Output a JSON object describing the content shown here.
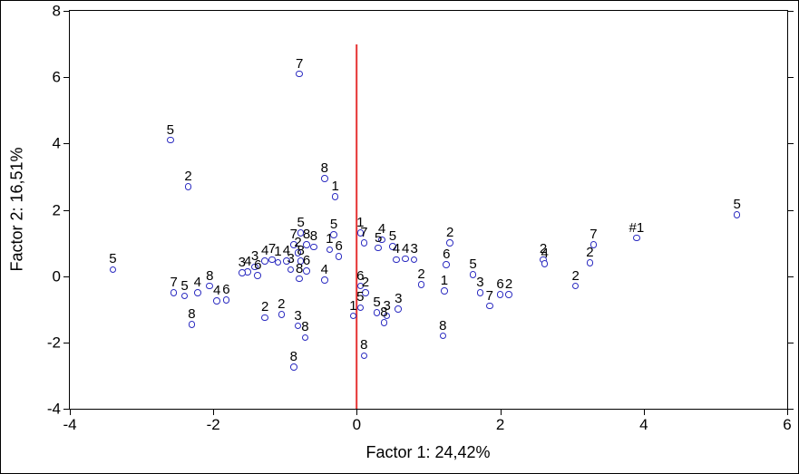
{
  "chart_data": {
    "type": "scatter",
    "title": "",
    "xlabel": "Factor 1: 24,42%",
    "ylabel": "Factor 2: 16,51%",
    "xlim": [
      -4,
      6
    ],
    "ylim": [
      -4,
      8
    ],
    "x_ticks": [
      -4,
      -2,
      0,
      2,
      4,
      6
    ],
    "y_ticks": [
      8,
      6,
      4,
      2,
      0,
      -2,
      -4
    ],
    "grid": false,
    "legend": "none",
    "marker": {
      "shape": "circle",
      "fill": "#ffffff",
      "stroke": "#2a2ac0"
    },
    "reference_line": {
      "axis": "vertical",
      "x": 0,
      "y_from": -4,
      "y_to": 7,
      "color": "#e63232"
    },
    "points": [
      {
        "label": "7",
        "x": -0.8,
        "y": 6.1
      },
      {
        "label": "5",
        "x": -2.6,
        "y": 4.1
      },
      {
        "label": "2",
        "x": -2.35,
        "y": 2.7
      },
      {
        "label": "8",
        "x": -0.45,
        "y": 2.95
      },
      {
        "label": "1",
        "x": -0.3,
        "y": 2.4
      },
      {
        "label": "5",
        "x": 5.3,
        "y": 1.85
      },
      {
        "label": "#1",
        "x": 3.9,
        "y": 1.15
      },
      {
        "label": "7",
        "x": 3.3,
        "y": 0.95
      },
      {
        "label": "2",
        "x": 3.25,
        "y": 0.4
      },
      {
        "label": "2",
        "x": 3.05,
        "y": -0.3
      },
      {
        "label": "2",
        "x": 2.6,
        "y": 0.5
      },
      {
        "label": "4",
        "x": 2.62,
        "y": 0.38
      },
      {
        "label": "2",
        "x": 1.3,
        "y": 1.0
      },
      {
        "label": "6",
        "x": 1.25,
        "y": 0.35
      },
      {
        "label": "1",
        "x": 1.22,
        "y": -0.45
      },
      {
        "label": "8",
        "x": 1.2,
        "y": -1.8
      },
      {
        "label": "5",
        "x": 1.62,
        "y": 0.05
      },
      {
        "label": "3",
        "x": 1.72,
        "y": -0.5
      },
      {
        "label": "7",
        "x": 1.85,
        "y": -0.9
      },
      {
        "label": "6",
        "x": 2.0,
        "y": -0.55
      },
      {
        "label": "2",
        "x": 2.12,
        "y": -0.55
      },
      {
        "label": "1",
        "x": 0.05,
        "y": 1.3
      },
      {
        "label": "7",
        "x": 0.1,
        "y": 1.0
      },
      {
        "label": "4",
        "x": 0.35,
        "y": 1.1
      },
      {
        "label": "5",
        "x": 0.3,
        "y": 0.85
      },
      {
        "label": "5",
        "x": 0.5,
        "y": 0.9
      },
      {
        "label": "4",
        "x": 0.55,
        "y": 0.5
      },
      {
        "label": "4",
        "x": 0.68,
        "y": 0.52
      },
      {
        "label": "3",
        "x": 0.8,
        "y": 0.5
      },
      {
        "label": "2",
        "x": 0.9,
        "y": -0.25
      },
      {
        "label": "6",
        "x": 0.05,
        "y": -0.3
      },
      {
        "label": "2",
        "x": 0.12,
        "y": -0.5
      },
      {
        "label": "5",
        "x": 0.05,
        "y": -0.95
      },
      {
        "label": "1",
        "x": -0.05,
        "y": -1.2
      },
      {
        "label": "5",
        "x": 0.28,
        "y": -1.1
      },
      {
        "label": "3",
        "x": 0.42,
        "y": -1.2
      },
      {
        "label": "3",
        "x": 0.58,
        "y": -1.0
      },
      {
        "label": "8",
        "x": 0.38,
        "y": -1.4
      },
      {
        "label": "8",
        "x": 0.1,
        "y": -2.4
      },
      {
        "label": "5",
        "x": -0.78,
        "y": 1.3
      },
      {
        "label": "5",
        "x": -0.32,
        "y": 1.25
      },
      {
        "label": "7",
        "x": -0.88,
        "y": 0.95
      },
      {
        "label": "8",
        "x": -0.7,
        "y": 0.95
      },
      {
        "label": "8",
        "x": -0.6,
        "y": 0.88
      },
      {
        "label": "1",
        "x": -0.38,
        "y": 0.8
      },
      {
        "label": "6",
        "x": -0.25,
        "y": 0.6
      },
      {
        "label": "2",
        "x": -0.82,
        "y": 0.7
      },
      {
        "label": "4",
        "x": -0.98,
        "y": 0.45
      },
      {
        "label": "8",
        "x": -0.78,
        "y": 0.45
      },
      {
        "label": "3",
        "x": -0.92,
        "y": 0.2
      },
      {
        "label": "6",
        "x": -0.7,
        "y": 0.15
      },
      {
        "label": "8",
        "x": -0.8,
        "y": -0.08
      },
      {
        "label": "4",
        "x": -0.45,
        "y": -0.12
      },
      {
        "label": "7",
        "x": -1.18,
        "y": 0.5
      },
      {
        "label": "4",
        "x": -1.28,
        "y": 0.45
      },
      {
        "label": "1",
        "x": -1.1,
        "y": 0.42
      },
      {
        "label": "3",
        "x": -1.42,
        "y": 0.28
      },
      {
        "label": "4",
        "x": -1.52,
        "y": 0.12
      },
      {
        "label": "3",
        "x": -1.6,
        "y": 0.1
      },
      {
        "label": "6",
        "x": -1.38,
        "y": 0.02
      },
      {
        "label": "7",
        "x": -2.55,
        "y": -0.5
      },
      {
        "label": "5",
        "x": -2.4,
        "y": -0.6
      },
      {
        "label": "4",
        "x": -2.22,
        "y": -0.5
      },
      {
        "label": "8",
        "x": -2.05,
        "y": -0.3
      },
      {
        "label": "8",
        "x": -2.3,
        "y": -1.45
      },
      {
        "label": "4",
        "x": -1.95,
        "y": -0.75
      },
      {
        "label": "6",
        "x": -1.82,
        "y": -0.72
      },
      {
        "label": "2",
        "x": -1.28,
        "y": -1.25
      },
      {
        "label": "2",
        "x": -1.05,
        "y": -1.15
      },
      {
        "label": "3",
        "x": -0.82,
        "y": -1.5
      },
      {
        "label": "8",
        "x": -0.72,
        "y": -1.85
      },
      {
        "label": "8",
        "x": -0.88,
        "y": -2.75
      },
      {
        "label": "5",
        "x": -3.4,
        "y": 0.2
      }
    ]
  }
}
